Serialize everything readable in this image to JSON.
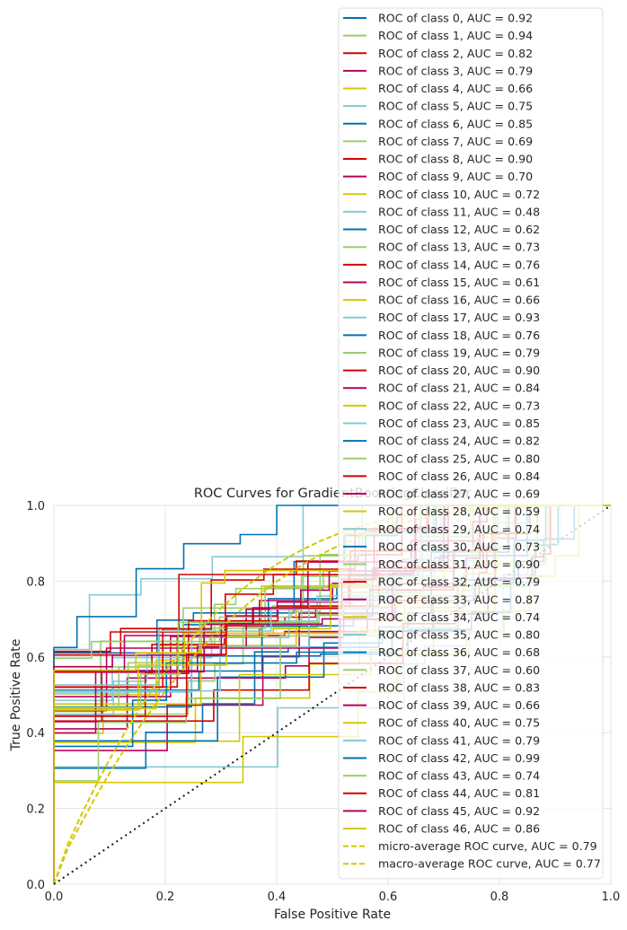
{
  "chart_data": {
    "type": "line",
    "title": "ROC Curves for GradientBoostingClassifier",
    "xlabel": "False Positive Rate",
    "ylabel": "True Positive Rate",
    "xlim": [
      0,
      1
    ],
    "ylim": [
      0,
      1
    ],
    "xticks": [
      "0.0",
      "0.2",
      "0.4",
      "0.6",
      "0.8",
      "1.0"
    ],
    "yticks": [
      "0.0",
      "0.2",
      "0.4",
      "0.6",
      "0.8",
      "1.0"
    ],
    "grid": true,
    "legend_position": "upper right",
    "palette": [
      "#0072B2",
      "#9ACD6E",
      "#D50000",
      "#B8005C",
      "#D4C800",
      "#86C8D6"
    ],
    "series": [
      {
        "name": "ROC of class 0, AUC = 0.92",
        "auc": 0.92
      },
      {
        "name": "ROC of class 1, AUC = 0.94",
        "auc": 0.94
      },
      {
        "name": "ROC of class 2, AUC = 0.82",
        "auc": 0.82
      },
      {
        "name": "ROC of class 3, AUC = 0.79",
        "auc": 0.79
      },
      {
        "name": "ROC of class 4, AUC = 0.66",
        "auc": 0.66
      },
      {
        "name": "ROC of class 5, AUC = 0.75",
        "auc": 0.75
      },
      {
        "name": "ROC of class 6, AUC = 0.85",
        "auc": 0.85
      },
      {
        "name": "ROC of class 7, AUC = 0.69",
        "auc": 0.69
      },
      {
        "name": "ROC of class 8, AUC = 0.90",
        "auc": 0.9
      },
      {
        "name": "ROC of class 9, AUC = 0.70",
        "auc": 0.7
      },
      {
        "name": "ROC of class 10, AUC = 0.72",
        "auc": 0.72
      },
      {
        "name": "ROC of class 11, AUC = 0.48",
        "auc": 0.48
      },
      {
        "name": "ROC of class 12, AUC = 0.62",
        "auc": 0.62
      },
      {
        "name": "ROC of class 13, AUC = 0.73",
        "auc": 0.73
      },
      {
        "name": "ROC of class 14, AUC = 0.76",
        "auc": 0.76
      },
      {
        "name": "ROC of class 15, AUC = 0.61",
        "auc": 0.61
      },
      {
        "name": "ROC of class 16, AUC = 0.66",
        "auc": 0.66
      },
      {
        "name": "ROC of class 17, AUC = 0.93",
        "auc": 0.93
      },
      {
        "name": "ROC of class 18, AUC = 0.76",
        "auc": 0.76
      },
      {
        "name": "ROC of class 19, AUC = 0.79",
        "auc": 0.79
      },
      {
        "name": "ROC of class 20, AUC = 0.90",
        "auc": 0.9
      },
      {
        "name": "ROC of class 21, AUC = 0.84",
        "auc": 0.84
      },
      {
        "name": "ROC of class 22, AUC = 0.73",
        "auc": 0.73
      },
      {
        "name": "ROC of class 23, AUC = 0.85",
        "auc": 0.85
      },
      {
        "name": "ROC of class 24, AUC = 0.82",
        "auc": 0.82
      },
      {
        "name": "ROC of class 25, AUC = 0.80",
        "auc": 0.8
      },
      {
        "name": "ROC of class 26, AUC = 0.84",
        "auc": 0.84
      },
      {
        "name": "ROC of class 27, AUC = 0.69",
        "auc": 0.69
      },
      {
        "name": "ROC of class 28, AUC = 0.59",
        "auc": 0.59
      },
      {
        "name": "ROC of class 29, AUC = 0.74",
        "auc": 0.74
      },
      {
        "name": "ROC of class 30, AUC = 0.73",
        "auc": 0.73
      },
      {
        "name": "ROC of class 31, AUC = 0.90",
        "auc": 0.9
      },
      {
        "name": "ROC of class 32, AUC = 0.79",
        "auc": 0.79
      },
      {
        "name": "ROC of class 33, AUC = 0.87",
        "auc": 0.87
      },
      {
        "name": "ROC of class 34, AUC = 0.74",
        "auc": 0.74
      },
      {
        "name": "ROC of class 35, AUC = 0.80",
        "auc": 0.8
      },
      {
        "name": "ROC of class 36, AUC = 0.68",
        "auc": 0.68
      },
      {
        "name": "ROC of class 37, AUC = 0.60",
        "auc": 0.6
      },
      {
        "name": "ROC of class 38, AUC = 0.83",
        "auc": 0.83
      },
      {
        "name": "ROC of class 39, AUC = 0.66",
        "auc": 0.66
      },
      {
        "name": "ROC of class 40, AUC = 0.75",
        "auc": 0.75
      },
      {
        "name": "ROC of class 41, AUC = 0.79",
        "auc": 0.79
      },
      {
        "name": "ROC of class 42, AUC = 0.99",
        "auc": 0.99
      },
      {
        "name": "ROC of class 43, AUC = 0.74",
        "auc": 0.74
      },
      {
        "name": "ROC of class 44, AUC = 0.81",
        "auc": 0.81
      },
      {
        "name": "ROC of class 45, AUC = 0.92",
        "auc": 0.92
      },
      {
        "name": "ROC of class 46, AUC = 0.86",
        "auc": 0.86
      },
      {
        "name": "micro-average ROC curve, AUC = 0.79",
        "auc": 0.79,
        "dashed": true
      },
      {
        "name": "macro-average ROC curve, AUC = 0.77",
        "auc": 0.77,
        "dashed": true
      }
    ]
  }
}
